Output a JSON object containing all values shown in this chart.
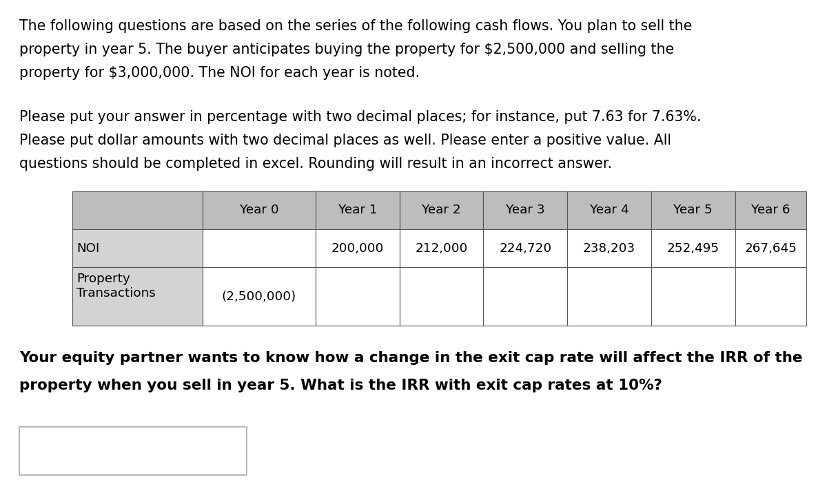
{
  "background_color": "#ffffff",
  "paragraph1_lines": [
    "The following questions are based on the series of the following cash flows. You plan to sell the",
    "property in year 5. The buyer anticipates buying the property for $2,500,000 and selling the",
    "property for $3,000,000. The NOI for each year is noted."
  ],
  "paragraph2_lines": [
    "Please put your answer in percentage with two decimal places; for instance, put 7.63 for 7.63%.",
    "Please put dollar amounts with two decimal places as well. Please enter a positive value. All",
    "questions should be completed in excel. Rounding will result in an incorrect answer."
  ],
  "paragraph3_lines": [
    "Your equity partner wants to know how a change in the exit cap rate will affect the IRR of the",
    "property when you sell in year 5. What is the IRR with exit cap rates at 10%?"
  ],
  "table_headers": [
    "",
    "Year 0",
    "Year 1",
    "Year 2",
    "Year 3",
    "Year 4",
    "Year 5",
    "Year 6"
  ],
  "table_row1_label": "NOI",
  "table_row1_values": [
    "",
    "",
    "200,000",
    "212,000",
    "224,720",
    "238,203",
    "252,495",
    "267,645"
  ],
  "table_row2_label": "Property\nTransactions",
  "table_row2_values": [
    "",
    "(2,500,000)",
    "",
    "",
    "",
    "",
    "",
    ""
  ],
  "header_bg": "#bdbdbd",
  "label_bg": "#d3d3d3",
  "cell_bg": "#ffffff",
  "font_size_para": 14.8,
  "font_size_table": 13.2,
  "font_size_bold": 15.5
}
